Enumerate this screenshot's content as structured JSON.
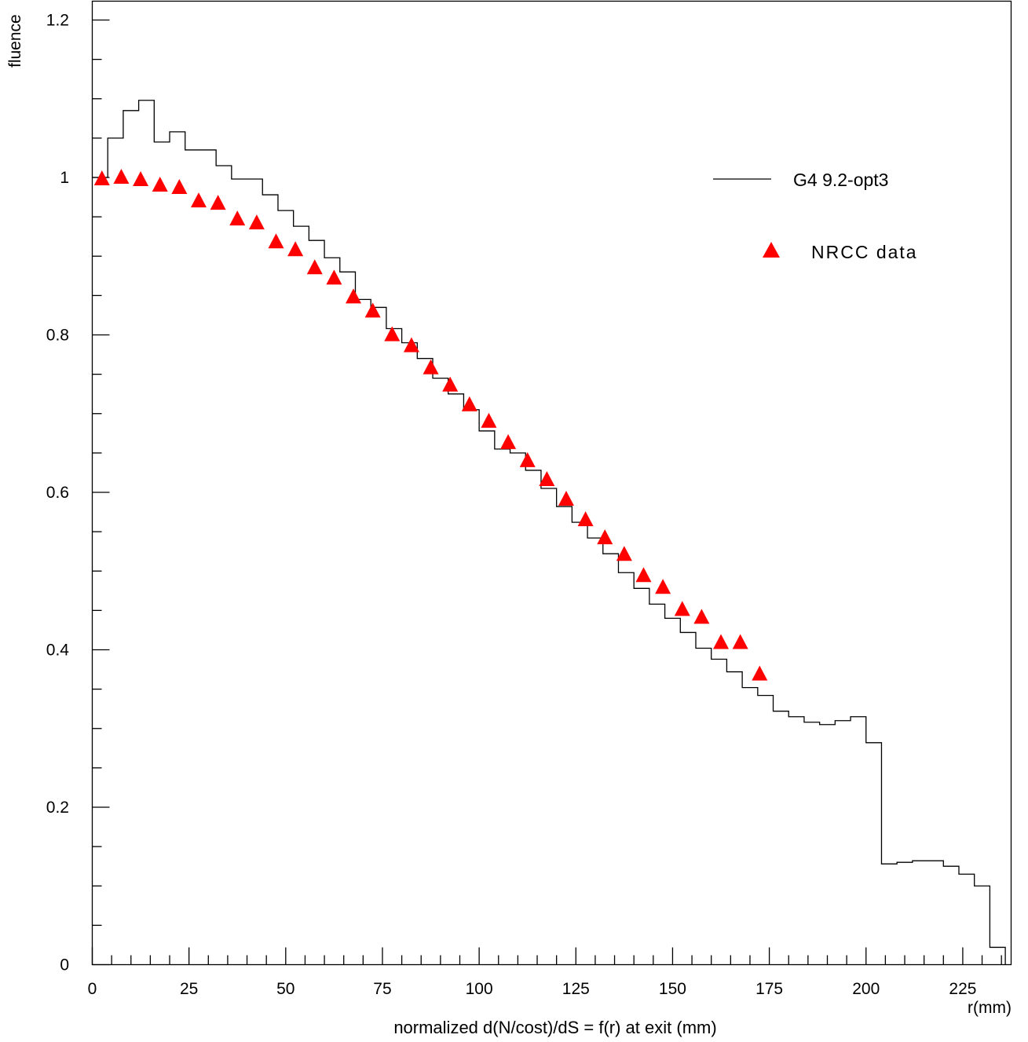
{
  "chart_data": {
    "type": "scatter",
    "title": "normalized d(N/cost)/dS = f(r) at exit (mm)",
    "xlabel": "r(mm)",
    "ylabel": "fluence",
    "xlim": [
      0,
      237.5
    ],
    "ylim": [
      0,
      1.2
    ],
    "x_major_ticks": [
      0,
      25,
      50,
      75,
      100,
      125,
      150,
      175,
      200,
      225
    ],
    "x_tick_labels": [
      "0",
      "25",
      "50",
      "75",
      "100",
      "125",
      "150",
      "175",
      "200",
      "225"
    ],
    "y_major_ticks": [
      0,
      0.2,
      0.4,
      0.6,
      0.8,
      1,
      1.2
    ],
    "y_tick_labels": [
      "0",
      "0.2",
      "0.4",
      "0.6",
      "0.8",
      "1",
      "1.2"
    ],
    "grid": false,
    "legend_position": "top-right",
    "series": [
      {
        "name": "G4 9.2-opt3",
        "style": "step-histogram",
        "color": "#000000",
        "bin_edges": [
          0,
          4,
          8,
          12,
          16,
          20,
          24,
          28,
          32,
          36,
          40,
          44,
          48,
          52,
          56,
          60,
          64,
          68,
          72,
          76,
          80,
          84,
          88,
          92,
          96,
          100,
          104,
          108,
          112,
          116,
          120,
          124,
          128,
          132,
          136,
          140,
          144,
          148,
          152,
          156,
          160,
          164,
          168,
          172,
          176,
          180,
          184,
          188,
          192,
          196,
          200,
          204,
          208,
          212,
          216,
          220,
          224,
          228,
          232,
          236
        ],
        "values": [
          1.0,
          1.05,
          1.085,
          1.098,
          1.045,
          1.058,
          1.035,
          1.035,
          1.015,
          0.998,
          0.998,
          0.978,
          0.958,
          0.938,
          0.92,
          0.898,
          0.88,
          0.845,
          0.835,
          0.808,
          0.79,
          0.77,
          0.745,
          0.725,
          0.705,
          0.678,
          0.655,
          0.65,
          0.628,
          0.605,
          0.582,
          0.562,
          0.542,
          0.522,
          0.498,
          0.478,
          0.458,
          0.44,
          0.422,
          0.402,
          0.388,
          0.372,
          0.352,
          0.342,
          0.322,
          0.315,
          0.308,
          0.305,
          0.31,
          0.315,
          0.282,
          0.128,
          0.13,
          0.132,
          0.132,
          0.125,
          0.115,
          0.1,
          0.022
        ]
      },
      {
        "name": "NRCC data",
        "style": "markers",
        "marker": "triangle",
        "color": "#ff0000",
        "x": [
          2.5,
          7.5,
          12.5,
          17.5,
          22.5,
          27.5,
          32.5,
          37.5,
          42.5,
          47.5,
          52.5,
          57.5,
          62.5,
          67.5,
          72.5,
          77.5,
          82.5,
          87.5,
          92.5,
          97.5,
          102.5,
          107.5,
          112.5,
          117.5,
          122.5,
          127.5,
          132.5,
          137.5,
          142.5,
          147.5,
          152.5,
          157.5,
          162.5,
          167.5,
          172.5
        ],
        "y": [
          0.998,
          1.0,
          0.997,
          0.99,
          0.987,
          0.97,
          0.967,
          0.947,
          0.942,
          0.918,
          0.908,
          0.885,
          0.872,
          0.848,
          0.83,
          0.8,
          0.786,
          0.758,
          0.736,
          0.711,
          0.69,
          0.663,
          0.64,
          0.616,
          0.591,
          0.565,
          0.542,
          0.521,
          0.494,
          0.479,
          0.451,
          0.441,
          0.409,
          0.409,
          0.369
        ]
      }
    ]
  }
}
